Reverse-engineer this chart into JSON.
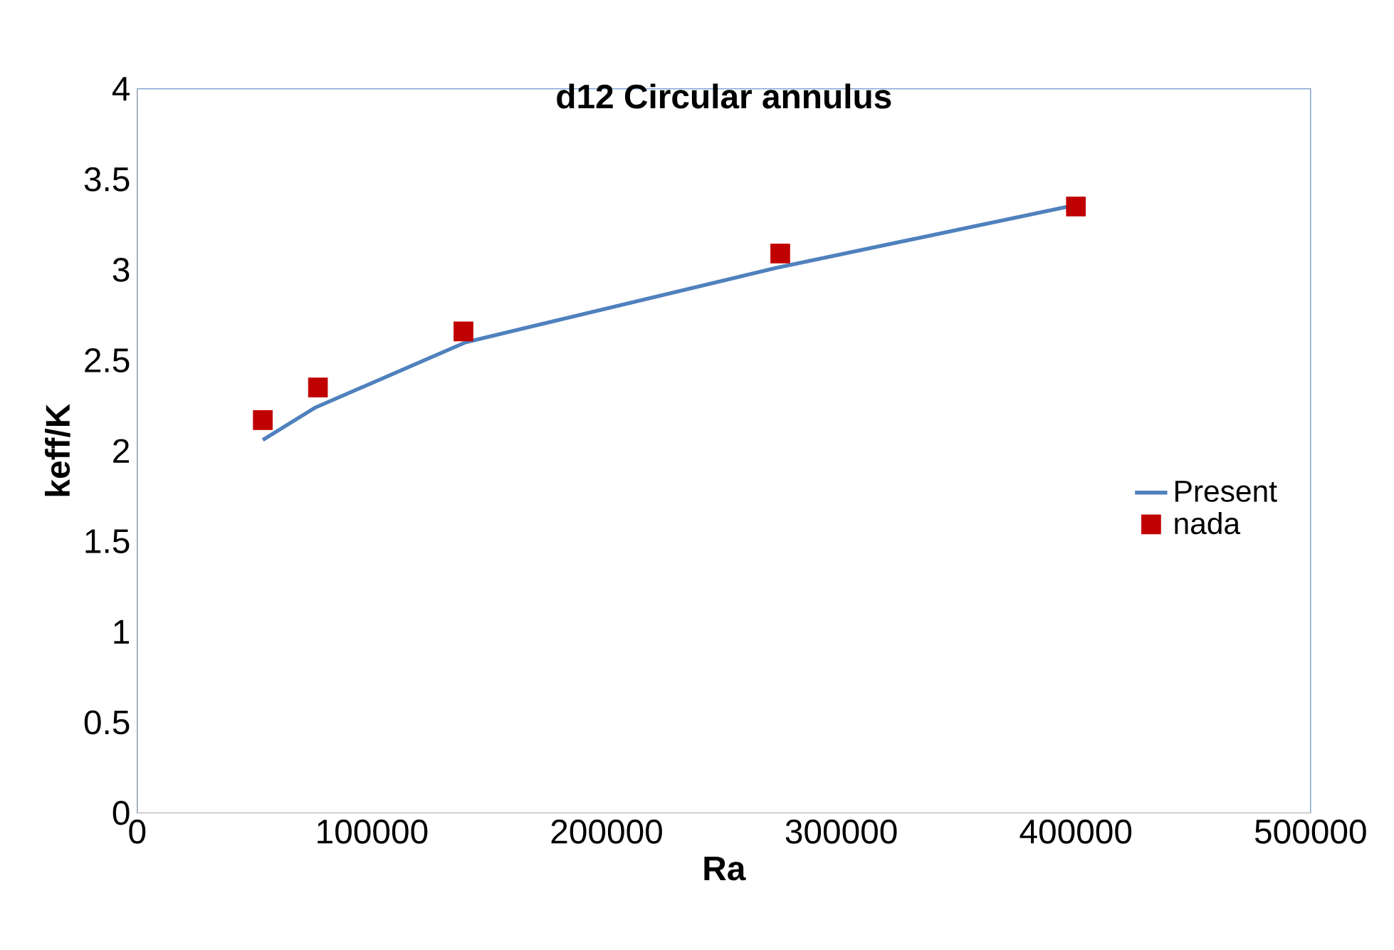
{
  "chart_data": {
    "type": "line",
    "title": "d12 Circular annulus",
    "xlabel": "Ra",
    "ylabel": "keff/K",
    "xlim": [
      0,
      500000
    ],
    "xticks": [
      0,
      100000,
      200000,
      300000,
      400000,
      500000
    ],
    "ylim": [
      0,
      4
    ],
    "yticks": [
      0,
      0.5,
      1,
      1.5,
      2,
      2.5,
      3,
      3.5,
      4
    ],
    "legend": "right",
    "grid": false,
    "series": [
      {
        "name": "Present",
        "color": "#4f81bd",
        "marker": "none",
        "line_style": "solid",
        "x": [
          53500,
          76000,
          140000,
          272000,
          397000
        ],
        "values": [
          2.06,
          2.24,
          2.6,
          3.01,
          3.35
        ]
      },
      {
        "name": "nada",
        "type": "scatter",
        "color": "#c00000",
        "marker": "square",
        "x": [
          53500,
          77000,
          139000,
          274000,
          400000
        ],
        "values": [
          2.17,
          2.35,
          2.66,
          3.09,
          3.35
        ]
      }
    ]
  }
}
